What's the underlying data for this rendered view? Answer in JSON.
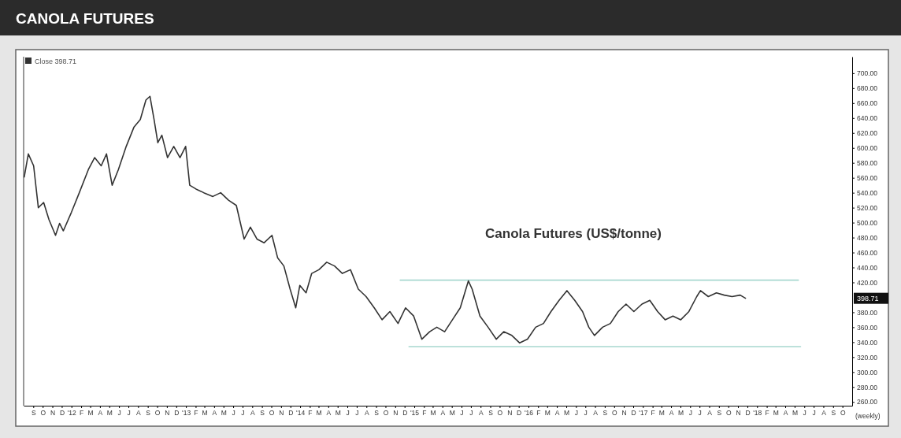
{
  "chart_data": {
    "type": "line",
    "title": "CANOLA FUTURES",
    "xlabel": "(weekly)",
    "annotations": [
      "Close 398.71",
      "Canola Futures (US$/tonne)",
      "398.71"
    ],
    "xlim": [
      "2011-08-01",
      "2018-11-01"
    ],
    "xticks": [
      {
        "value": "2011-09-01",
        "label": "S"
      },
      {
        "value": "2011-10-01",
        "label": "O"
      },
      {
        "value": "2011-11-01",
        "label": "N"
      },
      {
        "value": "2011-12-01",
        "label": "D"
      },
      {
        "value": "2012-01-01",
        "label": "'12"
      },
      {
        "value": "2012-02-01",
        "label": "F"
      },
      {
        "value": "2012-03-01",
        "label": "M"
      },
      {
        "value": "2012-04-01",
        "label": "A"
      },
      {
        "value": "2012-05-01",
        "label": "M"
      },
      {
        "value": "2012-06-01",
        "label": "J"
      },
      {
        "value": "2012-07-01",
        "label": "J"
      },
      {
        "value": "2012-08-01",
        "label": "A"
      },
      {
        "value": "2012-09-01",
        "label": "S"
      },
      {
        "value": "2012-10-01",
        "label": "O"
      },
      {
        "value": "2012-11-01",
        "label": "N"
      },
      {
        "value": "2012-12-01",
        "label": "D"
      },
      {
        "value": "2013-01-01",
        "label": "'13"
      },
      {
        "value": "2013-02-01",
        "label": "F"
      },
      {
        "value": "2013-03-01",
        "label": "M"
      },
      {
        "value": "2013-04-01",
        "label": "A"
      },
      {
        "value": "2013-05-01",
        "label": "M"
      },
      {
        "value": "2013-06-01",
        "label": "J"
      },
      {
        "value": "2013-07-01",
        "label": "J"
      },
      {
        "value": "2013-08-01",
        "label": "A"
      },
      {
        "value": "2013-09-01",
        "label": "S"
      },
      {
        "value": "2013-10-01",
        "label": "O"
      },
      {
        "value": "2013-11-01",
        "label": "N"
      },
      {
        "value": "2013-12-01",
        "label": "D"
      },
      {
        "value": "2014-01-01",
        "label": "'14"
      },
      {
        "value": "2014-02-01",
        "label": "F"
      },
      {
        "value": "2014-03-01",
        "label": "M"
      },
      {
        "value": "2014-04-01",
        "label": "A"
      },
      {
        "value": "2014-05-01",
        "label": "M"
      },
      {
        "value": "2014-06-01",
        "label": "J"
      },
      {
        "value": "2014-07-01",
        "label": "J"
      },
      {
        "value": "2014-08-01",
        "label": "A"
      },
      {
        "value": "2014-09-01",
        "label": "S"
      },
      {
        "value": "2014-10-01",
        "label": "O"
      },
      {
        "value": "2014-11-01",
        "label": "N"
      },
      {
        "value": "2014-12-01",
        "label": "D"
      },
      {
        "value": "2015-01-01",
        "label": "'15"
      },
      {
        "value": "2015-02-01",
        "label": "F"
      },
      {
        "value": "2015-03-01",
        "label": "M"
      },
      {
        "value": "2015-04-01",
        "label": "A"
      },
      {
        "value": "2015-05-01",
        "label": "M"
      },
      {
        "value": "2015-06-01",
        "label": "J"
      },
      {
        "value": "2015-07-01",
        "label": "J"
      },
      {
        "value": "2015-08-01",
        "label": "A"
      },
      {
        "value": "2015-09-01",
        "label": "S"
      },
      {
        "value": "2015-10-01",
        "label": "O"
      },
      {
        "value": "2015-11-01",
        "label": "N"
      },
      {
        "value": "2015-12-01",
        "label": "D"
      },
      {
        "value": "2016-01-01",
        "label": "'16"
      },
      {
        "value": "2016-02-01",
        "label": "F"
      },
      {
        "value": "2016-03-01",
        "label": "M"
      },
      {
        "value": "2016-04-01",
        "label": "A"
      },
      {
        "value": "2016-05-01",
        "label": "M"
      },
      {
        "value": "2016-06-01",
        "label": "J"
      },
      {
        "value": "2016-07-01",
        "label": "J"
      },
      {
        "value": "2016-08-01",
        "label": "A"
      },
      {
        "value": "2016-09-01",
        "label": "S"
      },
      {
        "value": "2016-10-01",
        "label": "O"
      },
      {
        "value": "2016-11-01",
        "label": "N"
      },
      {
        "value": "2016-12-01",
        "label": "D"
      },
      {
        "value": "2017-01-01",
        "label": "'17"
      },
      {
        "value": "2017-02-01",
        "label": "F"
      },
      {
        "value": "2017-03-01",
        "label": "M"
      },
      {
        "value": "2017-04-01",
        "label": "A"
      },
      {
        "value": "2017-05-01",
        "label": "M"
      },
      {
        "value": "2017-06-01",
        "label": "J"
      },
      {
        "value": "2017-07-01",
        "label": "J"
      },
      {
        "value": "2017-08-01",
        "label": "A"
      },
      {
        "value": "2017-09-01",
        "label": "S"
      },
      {
        "value": "2017-10-01",
        "label": "O"
      },
      {
        "value": "2017-11-01",
        "label": "N"
      },
      {
        "value": "2017-12-01",
        "label": "D"
      },
      {
        "value": "2018-01-01",
        "label": "'18"
      },
      {
        "value": "2018-02-01",
        "label": "F"
      },
      {
        "value": "2018-03-01",
        "label": "M"
      },
      {
        "value": "2018-04-01",
        "label": "A"
      },
      {
        "value": "2018-05-01",
        "label": "M"
      },
      {
        "value": "2018-06-01",
        "label": "J"
      },
      {
        "value": "2018-07-01",
        "label": "J"
      },
      {
        "value": "2018-08-01",
        "label": "A"
      },
      {
        "value": "2018-09-01",
        "label": "S"
      },
      {
        "value": "2018-10-01",
        "label": "O"
      }
    ],
    "ylim": [
      255,
      722
    ],
    "yticks": [
      {
        "value": 260,
        "label": "260.00"
      },
      {
        "value": 280,
        "label": "280.00"
      },
      {
        "value": 300,
        "label": "300.00"
      },
      {
        "value": 320,
        "label": "320.00"
      },
      {
        "value": 340,
        "label": "340.00"
      },
      {
        "value": 360,
        "label": "360.00"
      },
      {
        "value": 380,
        "label": "380.00"
      },
      {
        "value": 420,
        "label": "420.00"
      },
      {
        "value": 440,
        "label": "440.00"
      },
      {
        "value": 460,
        "label": "460.00"
      },
      {
        "value": 480,
        "label": "480.00"
      },
      {
        "value": 500,
        "label": "500.00"
      },
      {
        "value": 520,
        "label": "520.00"
      },
      {
        "value": 540,
        "label": "540.00"
      },
      {
        "value": 560,
        "label": "560.00"
      },
      {
        "value": 580,
        "label": "580.00"
      },
      {
        "value": 600,
        "label": "600.00"
      },
      {
        "value": 620,
        "label": "620.00"
      },
      {
        "value": 640,
        "label": "640.00"
      },
      {
        "value": 660,
        "label": "660.00"
      },
      {
        "value": 680,
        "label": "680.00"
      },
      {
        "value": 700,
        "label": "700.00"
      }
    ],
    "series": [
      {
        "color": "#333333",
        "x": [
          "2011-08-03",
          "2011-08-16",
          "2011-09-02",
          "2011-09-17",
          "2011-10-04",
          "2011-10-21",
          "2011-11-11",
          "2011-11-24",
          "2011-12-06",
          "2012-01-01",
          "2012-01-26",
          "2012-02-24",
          "2012-03-15",
          "2012-04-05",
          "2012-04-22",
          "2012-05-10",
          "2012-05-30",
          "2012-06-24",
          "2012-07-19",
          "2012-08-08",
          "2012-08-26",
          "2012-09-08",
          "2012-09-21",
          "2012-10-03",
          "2012-10-16",
          "2012-11-03",
          "2012-11-23",
          "2012-12-13",
          "2012-12-31",
          "2013-01-13",
          "2013-02-02",
          "2013-02-27",
          "2013-03-28",
          "2013-04-22",
          "2013-05-17",
          "2013-06-11",
          "2013-07-06",
          "2013-07-26",
          "2013-08-16",
          "2013-09-08",
          "2013-10-03",
          "2013-10-21",
          "2013-11-10",
          "2013-11-30",
          "2013-12-18",
          "2013-12-31",
          "2014-01-20",
          "2014-02-07",
          "2014-03-02",
          "2014-03-27",
          "2014-04-21",
          "2014-05-16",
          "2014-06-11",
          "2014-07-06",
          "2014-07-31",
          "2014-08-26",
          "2014-09-20",
          "2014-10-15",
          "2014-11-10",
          "2014-12-04",
          "2014-12-30",
          "2015-01-25",
          "2015-02-19",
          "2015-03-14",
          "2015-04-08",
          "2015-05-03",
          "2015-05-28",
          "2015-06-23",
          "2015-07-05",
          "2015-07-30",
          "2015-08-25",
          "2015-09-20",
          "2015-10-14",
          "2015-11-09",
          "2015-12-04",
          "2015-12-29",
          "2016-01-24",
          "2016-02-18",
          "2016-03-13",
          "2016-04-08",
          "2016-05-03",
          "2016-05-28",
          "2016-06-22",
          "2016-07-12",
          "2016-07-30",
          "2016-08-25",
          "2016-09-19",
          "2016-10-14",
          "2016-11-08",
          "2016-12-03",
          "2016-12-29",
          "2017-01-23",
          "2017-02-17",
          "2017-03-13",
          "2017-04-07",
          "2017-05-02",
          "2017-05-28",
          "2017-06-22",
          "2017-07-04",
          "2017-07-29",
          "2017-08-24",
          "2017-09-18",
          "2017-10-13",
          "2017-11-08",
          "2017-11-25"
        ],
        "values": [
          561,
          592,
          576,
          520,
          527,
          504,
          483,
          499,
          489,
          514,
          540,
          571,
          587,
          576,
          592,
          550,
          571,
          602,
          628,
          638,
          664,
          669,
          638,
          607,
          617,
          587,
          602,
          587,
          602,
          550,
          545,
          540,
          535,
          540,
          530,
          523,
          478,
          494,
          478,
          473,
          483,
          453,
          442,
          411,
          386,
          416,
          406,
          432,
          437,
          447,
          442,
          432,
          437,
          411,
          401,
          386,
          370,
          381,
          365,
          386,
          375,
          344,
          354,
          360,
          354,
          370,
          386,
          422,
          411,
          375,
          360,
          344,
          354,
          349,
          339,
          344,
          360,
          365,
          381,
          396,
          409,
          396,
          381,
          360,
          349,
          360,
          365,
          381,
          391,
          381,
          391,
          396,
          381,
          370,
          375,
          370,
          381,
          401,
          409,
          401,
          406,
          403,
          401,
          403,
          398.71
        ]
      },
      {
        "color": "#a8d8d0",
        "x": [
          "2014-11-17",
          "2018-05-13"
        ],
        "values": [
          423,
          423
        ]
      },
      {
        "color": "#a8d8d0",
        "x": [
          "2014-12-15",
          "2018-05-20"
        ],
        "values": [
          334,
          334
        ]
      }
    ]
  }
}
